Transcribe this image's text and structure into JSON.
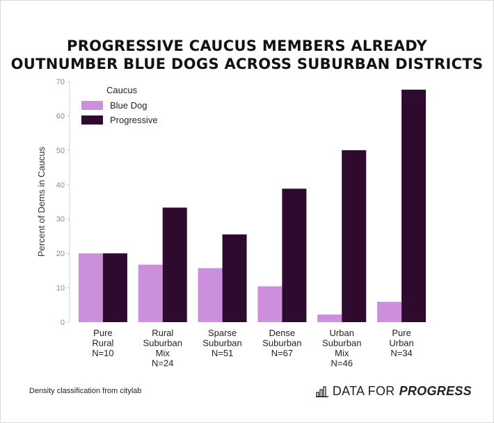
{
  "title_line1": "PROGRESSIVE CAUCUS MEMBERS ALREADY",
  "title_line2": "OUTNUMBER BLUE DOGS ACROSS SUBURBAN DISTRICTS",
  "footnote": "Density classification from citylab",
  "brand": {
    "prefix": "DATA FOR",
    "emphasis": "PROGRESS",
    "icon": "bar-chart-icon"
  },
  "chart_data": {
    "type": "bar",
    "title": "PROGRESSIVE CAUCUS MEMBERS ALREADY OUTNUMBER BLUE DOGS ACROSS SUBURBAN DISTRICTS",
    "ylabel": "Percent of Dems in Caucus",
    "xlabel": "",
    "ylim": [
      0,
      70
    ],
    "yticks": [
      0,
      10,
      20,
      30,
      40,
      50,
      60,
      70
    ],
    "grid": false,
    "legend": {
      "title": "Caucus",
      "position": "top-left"
    },
    "categories": [
      [
        "Pure",
        "Rural",
        "N=10"
      ],
      [
        "Rural",
        "Suburban",
        "Mix",
        "N=24"
      ],
      [
        "Sparse",
        "Suburban",
        "N=51"
      ],
      [
        "Dense",
        "Suburban",
        "N=67"
      ],
      [
        "Urban",
        "Suburban",
        "Mix",
        "N=46"
      ],
      [
        "Pure",
        "Urban",
        "N=34"
      ]
    ],
    "series": [
      {
        "name": "Blue Dog",
        "color": "#cc8fdb",
        "values": [
          20,
          16.7,
          15.7,
          10.4,
          2.2,
          5.9
        ]
      },
      {
        "name": "Progressive",
        "color": "#2e0b2e",
        "values": [
          20,
          33.3,
          25.5,
          38.8,
          50,
          67.6
        ]
      }
    ]
  }
}
